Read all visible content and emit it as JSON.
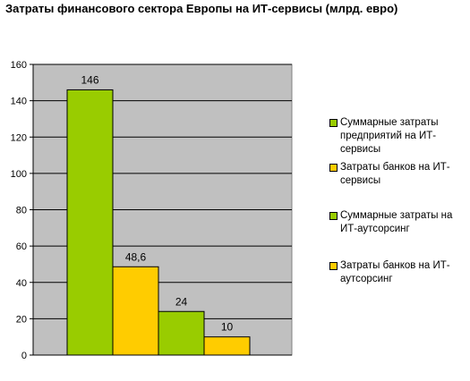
{
  "chart_data": {
    "type": "bar",
    "title": "Затраты финансового сектора Европы на ИТ-сервисы (млрд. евро)",
    "ylim": [
      0,
      160
    ],
    "yticks": [
      0,
      20,
      40,
      60,
      80,
      100,
      120,
      140,
      160
    ],
    "grid": true,
    "legend_position": "right",
    "plot_background": "#c0c0c0",
    "series": [
      {
        "name": "Суммарные затраты предприятий на ИТ-сервисы",
        "value": 146,
        "label": "146",
        "color": "#99cc00"
      },
      {
        "name": "Затраты банков на ИТ-сервисы",
        "value": 48.6,
        "label": "48,6",
        "color": "#ffcc00"
      },
      {
        "name": "Суммарные затраты на ИТ-аутсорсинг",
        "value": 24,
        "label": "24",
        "color": "#99cc00"
      },
      {
        "name": "Затраты банков на ИТ-аутсорсинг",
        "value": 10,
        "label": "10",
        "color": "#ffcc00"
      }
    ]
  }
}
